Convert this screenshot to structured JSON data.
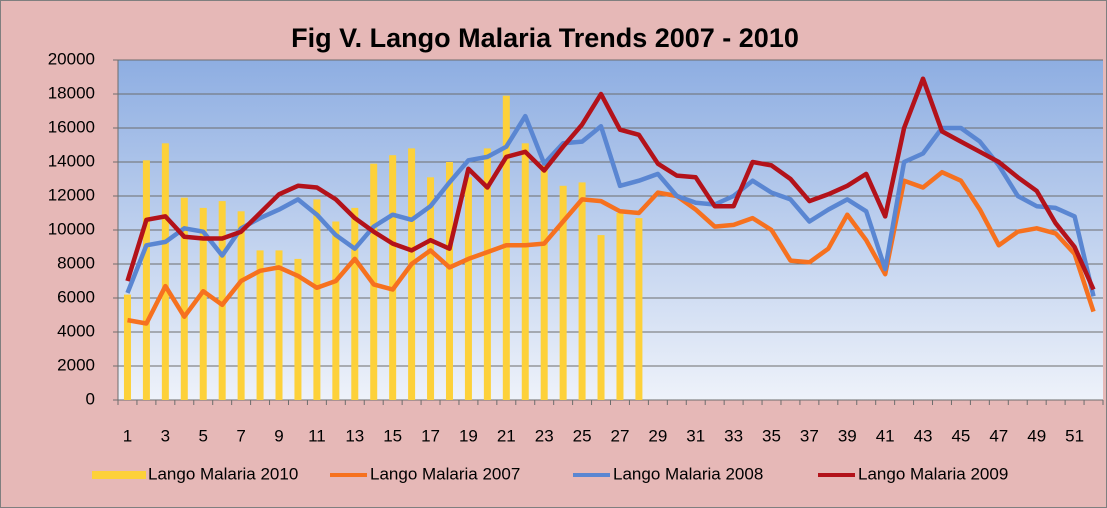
{
  "chart_data": {
    "type": "line",
    "title": "Fig V. Lango Malaria Trends 2007 - 2010",
    "categories": [
      1,
      null,
      3,
      null,
      5,
      null,
      7,
      null,
      9,
      null,
      11,
      null,
      13,
      null,
      15,
      null,
      17,
      null,
      19,
      null,
      21,
      null,
      23,
      null,
      25,
      null,
      27,
      null,
      29,
      null,
      31,
      null,
      33,
      null,
      35,
      null,
      37,
      null,
      39,
      null,
      41,
      null,
      43,
      null,
      45,
      null,
      47,
      null,
      49,
      null,
      51,
      null
    ],
    "ylim": [
      0,
      20000
    ],
    "yticks": [
      0,
      2000,
      4000,
      6000,
      8000,
      10000,
      12000,
      14000,
      16000,
      18000,
      20000
    ],
    "grid": true,
    "legend": "bottom",
    "series": [
      {
        "name": "Lango Malaria 2010",
        "type": "bar",
        "color": "#fdd13a",
        "values": [
          6200,
          14100,
          15100,
          11900,
          11300,
          11700,
          11100,
          8800,
          8800,
          8300,
          11800,
          10500,
          11300,
          13900,
          14400,
          14800,
          13100,
          14000,
          13100,
          14800,
          17900,
          15100,
          13800,
          12600,
          12800,
          9700,
          11000,
          10700,
          null,
          null,
          null,
          null,
          null,
          null,
          null,
          null,
          null,
          null,
          null,
          null,
          null,
          null,
          null,
          null,
          null,
          null,
          null,
          null,
          null,
          null,
          null,
          null
        ]
      },
      {
        "name": "Lango Malaria 2007",
        "type": "line",
        "color": "#f6711f",
        "values": [
          4700,
          4500,
          6700,
          4900,
          6400,
          5600,
          7000,
          7600,
          7800,
          7300,
          6600,
          7000,
          8300,
          6800,
          6500,
          8000,
          8800,
          7800,
          8300,
          8700,
          9100,
          9100,
          9200,
          10500,
          11800,
          11700,
          11100,
          11000,
          12200,
          12000,
          11200,
          10200,
          10300,
          10700,
          10000,
          8200,
          8100,
          8900,
          10900,
          9400,
          7400,
          12900,
          12500,
          13400,
          12900,
          11200,
          9100,
          9900,
          10100,
          9800,
          8600,
          5200
        ]
      },
      {
        "name": "Lango Malaria 2008",
        "type": "line",
        "color": "#5a86d2",
        "values": [
          6300,
          9100,
          9300,
          10100,
          9900,
          8500,
          10100,
          10700,
          11200,
          11800,
          10900,
          9700,
          8900,
          10200,
          10900,
          10600,
          11400,
          12800,
          14100,
          14300,
          14900,
          16700,
          13900,
          15100,
          15200,
          16100,
          12600,
          12900,
          13300,
          12000,
          11600,
          11500,
          12000,
          12900,
          12200,
          11800,
          10500,
          11200,
          11800,
          11100,
          7700,
          14000,
          14500,
          16000,
          16000,
          15200,
          13800,
          12000,
          11400,
          11300,
          10800,
          6100
        ]
      },
      {
        "name": "Lango Malaria 2009",
        "type": "line",
        "color": "#b3121a",
        "values": [
          7000,
          10600,
          10800,
          9600,
          9500,
          9500,
          9900,
          11000,
          12100,
          12600,
          12500,
          11800,
          10700,
          9900,
          9200,
          8800,
          9400,
          8900,
          13600,
          12500,
          14300,
          14600,
          13500,
          14900,
          16200,
          18000,
          15900,
          15600,
          13900,
          13200,
          13100,
          11400,
          11400,
          14000,
          13800,
          13000,
          11700,
          12100,
          12600,
          13300,
          10800,
          16000,
          18900,
          15800,
          15200,
          14600,
          14000,
          13100,
          12300,
          10400,
          9000,
          6500
        ]
      }
    ]
  }
}
